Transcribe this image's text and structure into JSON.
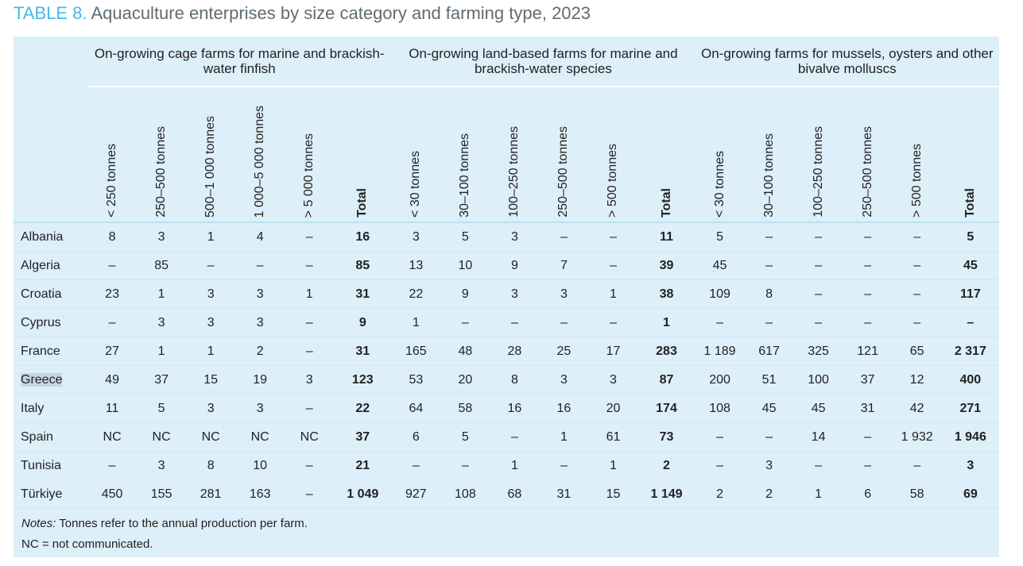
{
  "title": {
    "label": "TABLE 8.",
    "text": "Aquaculture enterprises by size category and farming type, 2023"
  },
  "groups": [
    "On-growing cage farms for marine and brackish-water finfish",
    "On-growing land-based farms for marine and brackish-water species",
    "On-growing farms for mussels, oysters and other bivalve molluscs"
  ],
  "columns": {
    "cage": [
      "< 250 tonnes",
      "250–500 tonnes",
      "500–1 000 tonnes",
      "1 000–5 000 tonnes",
      "> 5 000 tonnes",
      "Total"
    ],
    "land": [
      "< 30 tonnes",
      "30–100 tonnes",
      "100–250 tonnes",
      "250–500 tonnes",
      "> 500 tonnes",
      "Total"
    ],
    "mollusc": [
      "< 30 tonnes",
      "30–100 tonnes",
      "100–250 tonnes",
      "250–500 tonnes",
      "> 500 tonnes",
      "Total"
    ]
  },
  "rows": [
    {
      "country": "Albania",
      "cage": [
        "8",
        "3",
        "1",
        "4",
        "–",
        "16"
      ],
      "land": [
        "3",
        "5",
        "3",
        "–",
        "–",
        "11"
      ],
      "mollusc": [
        "5",
        "–",
        "–",
        "–",
        "–",
        "5"
      ]
    },
    {
      "country": "Algeria",
      "cage": [
        "–",
        "85",
        "–",
        "–",
        "–",
        "85"
      ],
      "land": [
        "13",
        "10",
        "9",
        "7",
        "–",
        "39"
      ],
      "mollusc": [
        "45",
        "–",
        "–",
        "–",
        "–",
        "45"
      ]
    },
    {
      "country": "Croatia",
      "cage": [
        "23",
        "1",
        "3",
        "3",
        "1",
        "31"
      ],
      "land": [
        "22",
        "9",
        "3",
        "3",
        "1",
        "38"
      ],
      "mollusc": [
        "109",
        "8",
        "–",
        "–",
        "–",
        "117"
      ]
    },
    {
      "country": "Cyprus",
      "cage": [
        "–",
        "3",
        "3",
        "3",
        "–",
        "9"
      ],
      "land": [
        "1",
        "–",
        "–",
        "–",
        "–",
        "1"
      ],
      "mollusc": [
        "–",
        "–",
        "–",
        "–",
        "–",
        "–"
      ]
    },
    {
      "country": "France",
      "cage": [
        "27",
        "1",
        "1",
        "2",
        "–",
        "31"
      ],
      "land": [
        "165",
        "48",
        "28",
        "25",
        "17",
        "283"
      ],
      "mollusc": [
        "1 189",
        "617",
        "325",
        "121",
        "65",
        "2 317"
      ]
    },
    {
      "country": "Greece",
      "cage": [
        "49",
        "37",
        "15",
        "19",
        "3",
        "123"
      ],
      "land": [
        "53",
        "20",
        "8",
        "3",
        "3",
        "87"
      ],
      "mollusc": [
        "200",
        "51",
        "100",
        "37",
        "12",
        "400"
      ]
    },
    {
      "country": "Italy",
      "cage": [
        "11",
        "5",
        "3",
        "3",
        "–",
        "22"
      ],
      "land": [
        "64",
        "58",
        "16",
        "16",
        "20",
        "174"
      ],
      "mollusc": [
        "108",
        "45",
        "45",
        "31",
        "42",
        "271"
      ]
    },
    {
      "country": "Spain",
      "cage": [
        "NC",
        "NC",
        "NC",
        "NC",
        "NC",
        "37"
      ],
      "land": [
        "6",
        "5",
        "–",
        "1",
        "61",
        "73"
      ],
      "mollusc": [
        "–",
        "–",
        "14",
        "–",
        "1 932",
        "1 946"
      ]
    },
    {
      "country": "Tunisia",
      "cage": [
        "–",
        "3",
        "8",
        "10",
        "–",
        "21"
      ],
      "land": [
        "–",
        "–",
        "1",
        "–",
        "1",
        "2"
      ],
      "mollusc": [
        "–",
        "3",
        "–",
        "–",
        "–",
        "3"
      ]
    },
    {
      "country": "Türkiye",
      "cage": [
        "450",
        "155",
        "281",
        "163",
        "–",
        "1 049"
      ],
      "land": [
        "927",
        "108",
        "68",
        "31",
        "15",
        "1 149"
      ],
      "mollusc": [
        "2",
        "2",
        "1",
        "6",
        "58",
        "69"
      ]
    }
  ],
  "notes": {
    "label": "Notes:",
    "text": " Tonnes refer to the annual production per farm.",
    "nc": "NC = not communicated."
  }
}
